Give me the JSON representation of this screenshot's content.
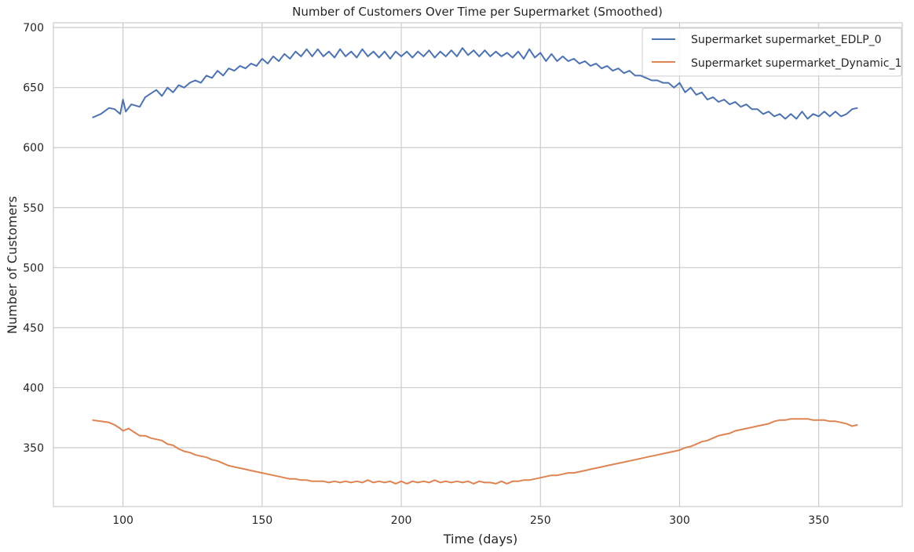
{
  "chart_data": {
    "type": "line",
    "title": "Number of Customers Over Time per Supermarket (Smoothed)",
    "xlabel": "Time (days)",
    "ylabel": "Number of Customers",
    "xlim": [
      75,
      380
    ],
    "ylim": [
      301,
      704
    ],
    "xticks": [
      100,
      150,
      200,
      250,
      300,
      350
    ],
    "yticks": [
      350,
      400,
      450,
      500,
      550,
      600,
      650,
      700
    ],
    "grid": true,
    "legend_position": "top-right",
    "series": [
      {
        "name": "Supermarket supermarket_EDLP_0",
        "color": "#4c72b0",
        "points": [
          [
            89,
            625
          ],
          [
            92,
            628
          ],
          [
            95,
            633
          ],
          [
            97,
            632
          ],
          [
            99,
            628
          ],
          [
            100,
            640
          ],
          [
            101,
            630
          ],
          [
            103,
            636
          ],
          [
            106,
            634
          ],
          [
            108,
            642
          ],
          [
            110,
            645
          ],
          [
            112,
            648
          ],
          [
            114,
            643
          ],
          [
            116,
            650
          ],
          [
            118,
            646
          ],
          [
            120,
            652
          ],
          [
            122,
            650
          ],
          [
            124,
            654
          ],
          [
            126,
            656
          ],
          [
            128,
            654
          ],
          [
            130,
            660
          ],
          [
            132,
            658
          ],
          [
            134,
            664
          ],
          [
            136,
            660
          ],
          [
            138,
            666
          ],
          [
            140,
            664
          ],
          [
            142,
            668
          ],
          [
            144,
            666
          ],
          [
            146,
            670
          ],
          [
            148,
            668
          ],
          [
            150,
            674
          ],
          [
            152,
            670
          ],
          [
            154,
            676
          ],
          [
            156,
            672
          ],
          [
            158,
            678
          ],
          [
            160,
            674
          ],
          [
            162,
            680
          ],
          [
            164,
            676
          ],
          [
            166,
            682
          ],
          [
            168,
            676
          ],
          [
            170,
            682
          ],
          [
            172,
            676
          ],
          [
            174,
            680
          ],
          [
            176,
            675
          ],
          [
            178,
            682
          ],
          [
            180,
            676
          ],
          [
            182,
            680
          ],
          [
            184,
            675
          ],
          [
            186,
            682
          ],
          [
            188,
            676
          ],
          [
            190,
            680
          ],
          [
            192,
            675
          ],
          [
            194,
            680
          ],
          [
            196,
            674
          ],
          [
            198,
            680
          ],
          [
            200,
            676
          ],
          [
            202,
            680
          ],
          [
            204,
            675
          ],
          [
            206,
            680
          ],
          [
            208,
            676
          ],
          [
            210,
            681
          ],
          [
            212,
            675
          ],
          [
            214,
            680
          ],
          [
            216,
            676
          ],
          [
            218,
            681
          ],
          [
            220,
            676
          ],
          [
            222,
            683
          ],
          [
            224,
            677
          ],
          [
            226,
            681
          ],
          [
            228,
            676
          ],
          [
            230,
            681
          ],
          [
            232,
            676
          ],
          [
            234,
            680
          ],
          [
            236,
            676
          ],
          [
            238,
            679
          ],
          [
            240,
            675
          ],
          [
            242,
            680
          ],
          [
            244,
            674
          ],
          [
            246,
            682
          ],
          [
            248,
            675
          ],
          [
            250,
            679
          ],
          [
            252,
            672
          ],
          [
            254,
            678
          ],
          [
            256,
            672
          ],
          [
            258,
            676
          ],
          [
            260,
            672
          ],
          [
            262,
            674
          ],
          [
            264,
            670
          ],
          [
            266,
            672
          ],
          [
            268,
            668
          ],
          [
            270,
            670
          ],
          [
            272,
            666
          ],
          [
            274,
            668
          ],
          [
            276,
            664
          ],
          [
            278,
            666
          ],
          [
            280,
            662
          ],
          [
            282,
            664
          ],
          [
            284,
            660
          ],
          [
            286,
            660
          ],
          [
            288,
            658
          ],
          [
            290,
            656
          ],
          [
            292,
            656
          ],
          [
            294,
            654
          ],
          [
            296,
            654
          ],
          [
            298,
            650
          ],
          [
            300,
            654
          ],
          [
            302,
            646
          ],
          [
            304,
            650
          ],
          [
            306,
            644
          ],
          [
            308,
            646
          ],
          [
            310,
            640
          ],
          [
            312,
            642
          ],
          [
            314,
            638
          ],
          [
            316,
            640
          ],
          [
            318,
            636
          ],
          [
            320,
            638
          ],
          [
            322,
            634
          ],
          [
            324,
            636
          ],
          [
            326,
            632
          ],
          [
            328,
            632
          ],
          [
            330,
            628
          ],
          [
            332,
            630
          ],
          [
            334,
            626
          ],
          [
            336,
            628
          ],
          [
            338,
            624
          ],
          [
            340,
            628
          ],
          [
            342,
            624
          ],
          [
            344,
            630
          ],
          [
            346,
            624
          ],
          [
            348,
            628
          ],
          [
            350,
            626
          ],
          [
            352,
            630
          ],
          [
            354,
            626
          ],
          [
            356,
            630
          ],
          [
            358,
            626
          ],
          [
            360,
            628
          ],
          [
            362,
            632
          ],
          [
            364,
            633
          ]
        ]
      },
      {
        "name": "Supermarket supermarket_Dynamic_1",
        "color": "#dd8452",
        "points": [
          [
            89,
            373
          ],
          [
            92,
            372
          ],
          [
            95,
            371
          ],
          [
            97,
            369
          ],
          [
            99,
            366
          ],
          [
            100,
            364
          ],
          [
            102,
            366
          ],
          [
            104,
            363
          ],
          [
            106,
            360
          ],
          [
            108,
            360
          ],
          [
            110,
            358
          ],
          [
            112,
            357
          ],
          [
            114,
            356
          ],
          [
            116,
            353
          ],
          [
            118,
            352
          ],
          [
            120,
            349
          ],
          [
            122,
            347
          ],
          [
            124,
            346
          ],
          [
            126,
            344
          ],
          [
            128,
            343
          ],
          [
            130,
            342
          ],
          [
            132,
            340
          ],
          [
            134,
            339
          ],
          [
            136,
            337
          ],
          [
            138,
            335
          ],
          [
            140,
            334
          ],
          [
            142,
            333
          ],
          [
            144,
            332
          ],
          [
            146,
            331
          ],
          [
            148,
            330
          ],
          [
            150,
            329
          ],
          [
            152,
            328
          ],
          [
            154,
            327
          ],
          [
            156,
            326
          ],
          [
            158,
            325
          ],
          [
            160,
            324
          ],
          [
            162,
            324
          ],
          [
            164,
            323
          ],
          [
            166,
            323
          ],
          [
            168,
            322
          ],
          [
            170,
            322
          ],
          [
            172,
            322
          ],
          [
            174,
            321
          ],
          [
            176,
            322
          ],
          [
            178,
            321
          ],
          [
            180,
            322
          ],
          [
            182,
            321
          ],
          [
            184,
            322
          ],
          [
            186,
            321
          ],
          [
            188,
            323
          ],
          [
            190,
            321
          ],
          [
            192,
            322
          ],
          [
            194,
            321
          ],
          [
            196,
            322
          ],
          [
            198,
            320
          ],
          [
            200,
            322
          ],
          [
            202,
            320
          ],
          [
            204,
            322
          ],
          [
            206,
            321
          ],
          [
            208,
            322
          ],
          [
            210,
            321
          ],
          [
            212,
            323
          ],
          [
            214,
            321
          ],
          [
            216,
            322
          ],
          [
            218,
            321
          ],
          [
            220,
            322
          ],
          [
            222,
            321
          ],
          [
            224,
            322
          ],
          [
            226,
            320
          ],
          [
            228,
            322
          ],
          [
            230,
            321
          ],
          [
            232,
            321
          ],
          [
            234,
            320
          ],
          [
            236,
            322
          ],
          [
            238,
            320
          ],
          [
            240,
            322
          ],
          [
            242,
            322
          ],
          [
            244,
            323
          ],
          [
            246,
            323
          ],
          [
            248,
            324
          ],
          [
            250,
            325
          ],
          [
            252,
            326
          ],
          [
            254,
            327
          ],
          [
            256,
            327
          ],
          [
            258,
            328
          ],
          [
            260,
            329
          ],
          [
            262,
            329
          ],
          [
            264,
            330
          ],
          [
            266,
            331
          ],
          [
            268,
            332
          ],
          [
            270,
            333
          ],
          [
            272,
            334
          ],
          [
            274,
            335
          ],
          [
            276,
            336
          ],
          [
            278,
            337
          ],
          [
            280,
            338
          ],
          [
            282,
            339
          ],
          [
            284,
            340
          ],
          [
            286,
            341
          ],
          [
            288,
            342
          ],
          [
            290,
            343
          ],
          [
            292,
            344
          ],
          [
            294,
            345
          ],
          [
            296,
            346
          ],
          [
            298,
            347
          ],
          [
            300,
            348
          ],
          [
            302,
            350
          ],
          [
            304,
            351
          ],
          [
            306,
            353
          ],
          [
            308,
            355
          ],
          [
            310,
            356
          ],
          [
            312,
            358
          ],
          [
            314,
            360
          ],
          [
            316,
            361
          ],
          [
            318,
            362
          ],
          [
            320,
            364
          ],
          [
            322,
            365
          ],
          [
            324,
            366
          ],
          [
            326,
            367
          ],
          [
            328,
            368
          ],
          [
            330,
            369
          ],
          [
            332,
            370
          ],
          [
            334,
            372
          ],
          [
            336,
            373
          ],
          [
            338,
            373
          ],
          [
            340,
            374
          ],
          [
            342,
            374
          ],
          [
            344,
            374
          ],
          [
            346,
            374
          ],
          [
            348,
            373
          ],
          [
            350,
            373
          ],
          [
            352,
            373
          ],
          [
            354,
            372
          ],
          [
            356,
            372
          ],
          [
            358,
            371
          ],
          [
            360,
            370
          ],
          [
            362,
            368
          ],
          [
            364,
            369
          ]
        ]
      }
    ]
  }
}
